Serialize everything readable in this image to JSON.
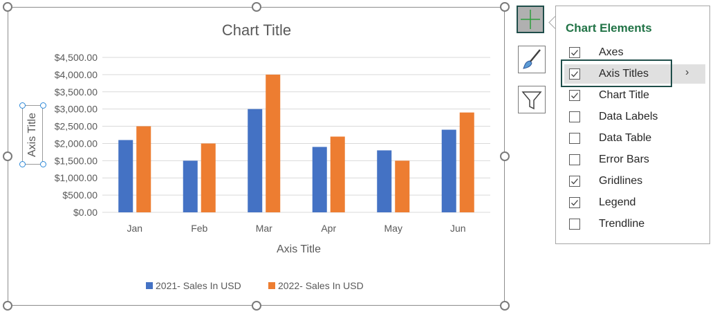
{
  "chart_data": {
    "type": "bar",
    "title": "Chart Title",
    "xlabel": "Axis Title",
    "ylabel": "Axis Title",
    "categories": [
      "Jan",
      "Feb",
      "Mar",
      "Apr",
      "May",
      "Jun"
    ],
    "ylim": [
      0,
      4500
    ],
    "yticks": [
      "$0.00",
      "$500.00",
      "$1,000.00",
      "$1,500.00",
      "$2,000.00",
      "$2,500.00",
      "$3,000.00",
      "$3,500.00",
      "$4,000.00",
      "$4,500.00"
    ],
    "grid": true,
    "legend_position": "bottom",
    "series": [
      {
        "name": "2021- Sales In USD",
        "color": "#4472c4",
        "values": [
          2100,
          1500,
          3000,
          1900,
          1800,
          2400
        ]
      },
      {
        "name": "2022- Sales In USD",
        "color": "#ed7d31",
        "values": [
          2500,
          2000,
          4000,
          2200,
          1500,
          2900
        ]
      }
    ]
  },
  "panel": {
    "title": "Chart Elements",
    "items": [
      {
        "label": "Axes",
        "checked": true
      },
      {
        "label": "Axis Titles",
        "checked": true
      },
      {
        "label": "Chart Title",
        "checked": true
      },
      {
        "label": "Data Labels",
        "checked": false
      },
      {
        "label": "Data Table",
        "checked": false
      },
      {
        "label": "Error Bars",
        "checked": false
      },
      {
        "label": "Gridlines",
        "checked": true
      },
      {
        "label": "Legend",
        "checked": true
      },
      {
        "label": "Trendline",
        "checked": false
      }
    ],
    "submenu_glyph": "›"
  },
  "icons": {
    "elements": "plus-icon",
    "styles": "paintbrush-icon",
    "filters": "funnel-icon"
  }
}
